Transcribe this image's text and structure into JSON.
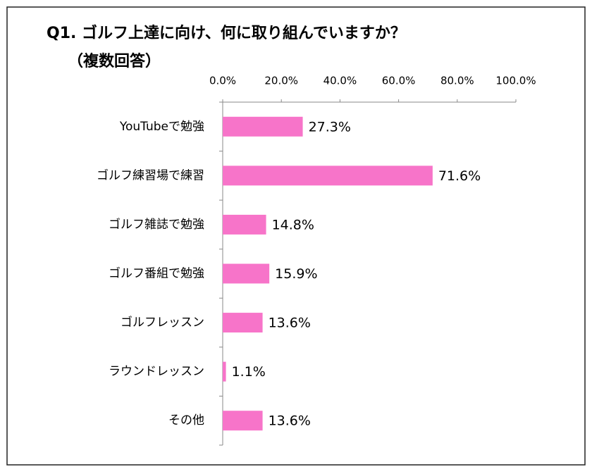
{
  "chart_data": {
    "type": "bar",
    "orientation": "horizontal",
    "title": "Q1. ゴルフ上達に向け、何に取り組んでいますか？",
    "subtitle": "（複数回答）",
    "categories": [
      "YouTubeで勉強",
      "ゴルフ練習場で練習",
      "ゴルフ雑誌で勉強",
      "ゴルフ番組で勉強",
      "ゴルフレッスン",
      "ラウンドレッスン",
      "その他"
    ],
    "values": [
      27.3,
      71.6,
      14.8,
      15.9,
      13.6,
      1.1,
      13.6
    ],
    "value_labels": [
      "27.3%",
      "71.6%",
      "14.8%",
      "15.9%",
      "13.6%",
      "1.1%",
      "13.6%"
    ],
    "color": "#f774c9",
    "xlim": [
      0,
      100
    ],
    "xticks": [
      {
        "value": 0,
        "label": "0.0%"
      },
      {
        "value": 20,
        "label": "20.0%"
      },
      {
        "value": 40,
        "label": "40.0%"
      },
      {
        "value": 60,
        "label": "60.0%"
      },
      {
        "value": 80,
        "label": "80.0%"
      },
      {
        "value": 100,
        "label": "100.0%"
      }
    ],
    "grid": false
  }
}
